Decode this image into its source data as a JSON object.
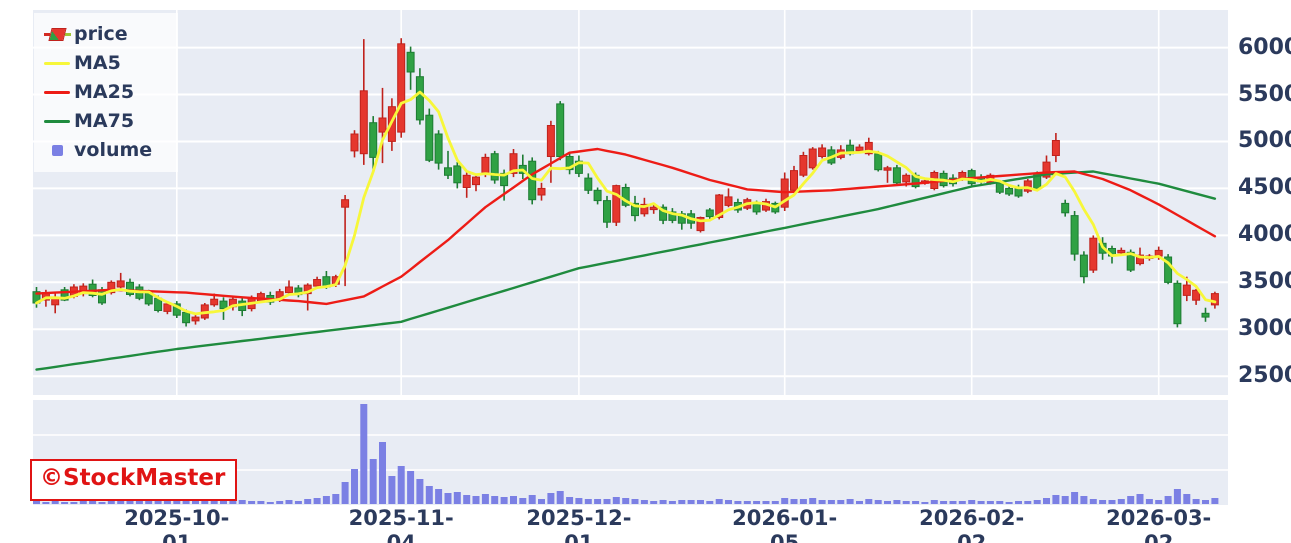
{
  "watermark": {
    "text": "©StockMaster"
  },
  "chart_data": {
    "type": "candlestick",
    "title": "",
    "legend": [
      {
        "label": "price",
        "swatch": "candle-icon"
      },
      {
        "label": "MA5",
        "swatch": "line"
      },
      {
        "label": "MA25",
        "swatch": "line"
      },
      {
        "label": "MA75",
        "swatch": "line"
      },
      {
        "label": "volume",
        "swatch": "square"
      }
    ],
    "legend_position": "top-left",
    "grid": true,
    "ylim": [
      2300,
      6400
    ],
    "y_ticks": [
      6000,
      5500,
      5000,
      4500,
      4000,
      3500,
      3000,
      2500
    ],
    "x_ticks": [
      {
        "index": 15,
        "label": "2025-10-01"
      },
      {
        "index": 39,
        "label": "2025-11-04"
      },
      {
        "index": 58,
        "label": "2025-12-01"
      },
      {
        "index": 80,
        "label": "2026-01-05"
      },
      {
        "index": 100,
        "label": "2026-02-02"
      },
      {
        "index": 120,
        "label": "2026-03-02"
      }
    ],
    "candle_format": "ohlc",
    "candle_color_rule": "close >= open drawn red (up), close < open drawn green (down)",
    "candles": [
      [
        3400,
        3450,
        3230,
        3280
      ],
      [
        3310,
        3420,
        3240,
        3390
      ],
      [
        3260,
        3390,
        3170,
        3340
      ],
      [
        3420,
        3450,
        3300,
        3310
      ],
      [
        3350,
        3480,
        3330,
        3450
      ],
      [
        3380,
        3490,
        3350,
        3460
      ],
      [
        3480,
        3530,
        3340,
        3360
      ],
      [
        3420,
        3450,
        3260,
        3280
      ],
      [
        3390,
        3520,
        3370,
        3500
      ],
      [
        3450,
        3600,
        3420,
        3515
      ],
      [
        3500,
        3540,
        3350,
        3370
      ],
      [
        3450,
        3480,
        3310,
        3330
      ],
      [
        3390,
        3420,
        3250,
        3270
      ],
      [
        3330,
        3360,
        3180,
        3200
      ],
      [
        3190,
        3290,
        3160,
        3270
      ],
      [
        3270,
        3300,
        3120,
        3150
      ],
      [
        3180,
        3210,
        3030,
        3070
      ],
      [
        3090,
        3160,
        3050,
        3130
      ],
      [
        3120,
        3280,
        3100,
        3260
      ],
      [
        3260,
        3380,
        3240,
        3320
      ],
      [
        3300,
        3340,
        3100,
        3220
      ],
      [
        3240,
        3350,
        3200,
        3320
      ],
      [
        3300,
        3340,
        3140,
        3200
      ],
      [
        3220,
        3360,
        3190,
        3330
      ],
      [
        3300,
        3400,
        3280,
        3380
      ],
      [
        3360,
        3400,
        3260,
        3290
      ],
      [
        3310,
        3430,
        3290,
        3400
      ],
      [
        3390,
        3520,
        3370,
        3450
      ],
      [
        3440,
        3470,
        3340,
        3370
      ],
      [
        3380,
        3490,
        3200,
        3470
      ],
      [
        3460,
        3560,
        3430,
        3530
      ],
      [
        3560,
        3620,
        3430,
        3450
      ],
      [
        3480,
        3580,
        3450,
        3560
      ],
      [
        4300,
        4430,
        3460,
        4380
      ],
      [
        4900,
        5120,
        4830,
        5080
      ],
      [
        4870,
        6090,
        4750,
        5540
      ],
      [
        5200,
        5270,
        4700,
        4830
      ],
      [
        5100,
        5570,
        4770,
        5250
      ],
      [
        5000,
        5460,
        4900,
        5370
      ],
      [
        5100,
        6100,
        5040,
        6040
      ],
      [
        5950,
        6010,
        5550,
        5740
      ],
      [
        5690,
        5780,
        5180,
        5230
      ],
      [
        5280,
        5350,
        4780,
        4800
      ],
      [
        5080,
        5120,
        4700,
        4770
      ],
      [
        4720,
        4900,
        4600,
        4640
      ],
      [
        4740,
        4780,
        4500,
        4560
      ],
      [
        4510,
        4680,
        4400,
        4640
      ],
      [
        4540,
        4650,
        4470,
        4620
      ],
      [
        4660,
        4870,
        4620,
        4830
      ],
      [
        4870,
        4900,
        4550,
        4590
      ],
      [
        4660,
        4700,
        4370,
        4530
      ],
      [
        4660,
        4920,
        4620,
        4870
      ],
      [
        4745,
        4860,
        4600,
        4660
      ],
      [
        4790,
        4830,
        4330,
        4380
      ],
      [
        4430,
        4560,
        4370,
        4500
      ],
      [
        4840,
        5220,
        4560,
        5170
      ],
      [
        5400,
        5430,
        4800,
        4840
      ],
      [
        4840,
        4890,
        4650,
        4700
      ],
      [
        4790,
        4850,
        4620,
        4660
      ],
      [
        4610,
        4660,
        4440,
        4480
      ],
      [
        4480,
        4510,
        4330,
        4370
      ],
      [
        4370,
        4420,
        4080,
        4140
      ],
      [
        4140,
        4540,
        4100,
        4530
      ],
      [
        4510,
        4550,
        4300,
        4320
      ],
      [
        4340,
        4420,
        4150,
        4210
      ],
      [
        4230,
        4400,
        4200,
        4330
      ],
      [
        4280,
        4350,
        4230,
        4300
      ],
      [
        4300,
        4330,
        4120,
        4160
      ],
      [
        4250,
        4290,
        4130,
        4160
      ],
      [
        4230,
        4260,
        4060,
        4130
      ],
      [
        4230,
        4270,
        4070,
        4130
      ],
      [
        4050,
        4200,
        4030,
        4190
      ],
      [
        4270,
        4290,
        4150,
        4200
      ],
      [
        4190,
        4440,
        4170,
        4430
      ],
      [
        4320,
        4500,
        4300,
        4410
      ],
      [
        4350,
        4390,
        4240,
        4270
      ],
      [
        4290,
        4400,
        4270,
        4380
      ],
      [
        4340,
        4370,
        4220,
        4250
      ],
      [
        4270,
        4390,
        4250,
        4360
      ],
      [
        4340,
        4360,
        4230,
        4250
      ],
      [
        4300,
        4670,
        4260,
        4600
      ],
      [
        4480,
        4740,
        4460,
        4690
      ],
      [
        4640,
        4890,
        4620,
        4850
      ],
      [
        4720,
        4940,
        4700,
        4920
      ],
      [
        4840,
        4970,
        4820,
        4930
      ],
      [
        4910,
        4950,
        4750,
        4770
      ],
      [
        4830,
        4960,
        4810,
        4910
      ],
      [
        4960,
        5020,
        4850,
        4870
      ],
      [
        4900,
        4970,
        4880,
        4940
      ],
      [
        4870,
        5040,
        4850,
        4990
      ],
      [
        4870,
        4900,
        4680,
        4700
      ],
      [
        4700,
        4740,
        4560,
        4720
      ],
      [
        4720,
        4750,
        4540,
        4560
      ],
      [
        4570,
        4660,
        4520,
        4640
      ],
      [
        4640,
        4670,
        4500,
        4520
      ],
      [
        4560,
        4610,
        4540,
        4580
      ],
      [
        4500,
        4690,
        4480,
        4670
      ],
      [
        4660,
        4690,
        4510,
        4530
      ],
      [
        4610,
        4650,
        4520,
        4550
      ],
      [
        4600,
        4690,
        4580,
        4670
      ],
      [
        4690,
        4710,
        4530,
        4550
      ],
      [
        4620,
        4650,
        4550,
        4570
      ],
      [
        4560,
        4660,
        4540,
        4640
      ],
      [
        4560,
        4580,
        4440,
        4460
      ],
      [
        4500,
        4530,
        4420,
        4440
      ],
      [
        4510,
        4540,
        4400,
        4420
      ],
      [
        4470,
        4600,
        4450,
        4580
      ],
      [
        4660,
        4680,
        4480,
        4500
      ],
      [
        4620,
        4850,
        4600,
        4780
      ],
      [
        4850,
        5090,
        4780,
        5010
      ],
      [
        4340,
        4380,
        4200,
        4240
      ],
      [
        4210,
        4260,
        3730,
        3800
      ],
      [
        3790,
        3830,
        3490,
        3560
      ],
      [
        3630,
        4000,
        3600,
        3970
      ],
      [
        3915,
        3980,
        3740,
        3810
      ],
      [
        3860,
        3890,
        3700,
        3780
      ],
      [
        3820,
        3870,
        3780,
        3840
      ],
      [
        3820,
        3850,
        3610,
        3630
      ],
      [
        3700,
        3870,
        3680,
        3790
      ],
      [
        3760,
        3800,
        3730,
        3780
      ],
      [
        3780,
        3880,
        3740,
        3840
      ],
      [
        3770,
        3800,
        3480,
        3500
      ],
      [
        3490,
        3520,
        3020,
        3060
      ],
      [
        3360,
        3560,
        3300,
        3470
      ],
      [
        3310,
        3430,
        3260,
        3415
      ],
      [
        3170,
        3230,
        3080,
        3130
      ],
      [
        3260,
        3400,
        3220,
        3380
      ]
    ],
    "volume_relative": [
      3,
      2,
      3,
      2,
      2,
      3,
      3,
      2,
      3,
      4,
      3,
      3,
      3,
      4,
      3,
      5,
      6,
      4,
      4,
      3,
      4,
      3,
      4,
      3,
      3,
      2,
      3,
      4,
      3,
      5,
      6,
      8,
      10,
      22,
      35,
      100,
      45,
      62,
      28,
      38,
      33,
      25,
      18,
      15,
      11,
      12,
      9,
      8,
      10,
      8,
      7,
      8,
      6,
      9,
      5,
      11,
      13,
      7,
      6,
      5,
      5,
      5,
      7,
      6,
      5,
      4,
      3,
      4,
      3,
      4,
      4,
      4,
      3,
      5,
      4,
      3,
      3,
      3,
      3,
      3,
      6,
      5,
      5,
      6,
      4,
      4,
      4,
      5,
      3,
      5,
      4,
      3,
      4,
      3,
      3,
      2,
      4,
      3,
      3,
      3,
      4,
      3,
      3,
      3,
      2,
      3,
      3,
      4,
      6,
      9,
      8,
      12,
      8,
      5,
      4,
      4,
      5,
      8,
      10,
      5,
      4,
      8,
      15,
      10,
      5,
      4,
      6
    ],
    "ma5_window": 5,
    "ma25_sampled_points": [
      [
        0,
        3380
      ],
      [
        8,
        3420
      ],
      [
        16,
        3390
      ],
      [
        22,
        3340
      ],
      [
        28,
        3300
      ],
      [
        31,
        3270
      ],
      [
        35,
        3350
      ],
      [
        39,
        3560
      ],
      [
        44,
        3950
      ],
      [
        48,
        4300
      ],
      [
        53,
        4650
      ],
      [
        57,
        4880
      ],
      [
        60,
        4920
      ],
      [
        63,
        4860
      ],
      [
        68,
        4720
      ],
      [
        72,
        4590
      ],
      [
        76,
        4490
      ],
      [
        80,
        4460
      ],
      [
        85,
        4480
      ],
      [
        90,
        4520
      ],
      [
        95,
        4560
      ],
      [
        100,
        4610
      ],
      [
        104,
        4640
      ],
      [
        108,
        4670
      ],
      [
        111,
        4680
      ],
      [
        114,
        4600
      ],
      [
        117,
        4480
      ],
      [
        120,
        4330
      ],
      [
        123,
        4160
      ],
      [
        126,
        3990
      ]
    ],
    "ma75_sampled_points": [
      [
        0,
        2570
      ],
      [
        15,
        2790
      ],
      [
        39,
        3080
      ],
      [
        58,
        3650
      ],
      [
        80,
        4080
      ],
      [
        90,
        4280
      ],
      [
        100,
        4520
      ],
      [
        108,
        4650
      ],
      [
        113,
        4680
      ],
      [
        120,
        4550
      ],
      [
        126,
        4390
      ]
    ],
    "colors": {
      "plot_bg": "#e8ecf4",
      "grid": "#ffffff",
      "up_fill": "#e5372e",
      "up_stroke": "#c0221c",
      "down_fill": "#2fa144",
      "down_stroke": "#1d7c33",
      "ma5": "#f7f73a",
      "ma25": "#ed1c16",
      "ma75": "#1f8b3e",
      "volume": "#7b80e4",
      "axis_text": "#2b3a5c",
      "watermark": "#e01414"
    }
  }
}
